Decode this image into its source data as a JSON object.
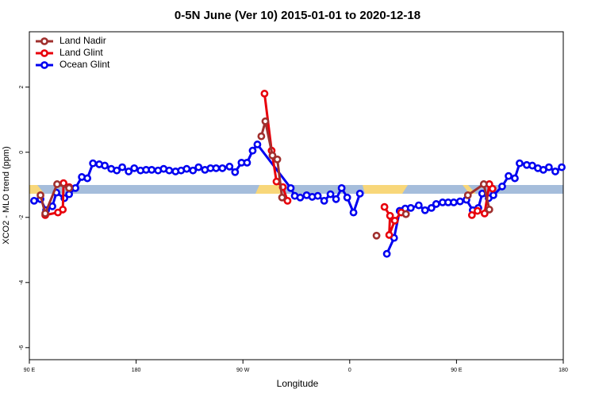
{
  "chart_data": {
    "type": "line",
    "title": "0-5N June (Ver 10)   2015-01-01 to 2020-12-18",
    "x_label": "Longitude",
    "y_label": "XCO2 - MLO trend (ppm)",
    "xlim": [
      90,
      540
    ],
    "ylim": [
      -6.37,
      3.7
    ],
    "xticks": [
      {
        "value": 90,
        "label": "90 E"
      },
      180,
      {
        "value": 270,
        "label": "90 W"
      },
      {
        "value": 360,
        "label": "0"
      },
      {
        "value": 450,
        "label": "90 E"
      },
      {
        "value": 540,
        "label": "180"
      }
    ],
    "yticks": [
      -6,
      -4,
      -2,
      0,
      2
    ],
    "legend": "top-left",
    "series": [
      {
        "name": "Land Nadir",
        "color": "#a0302e",
        "x": [
          99.4,
          103.4,
          113.4,
          123.5,
          null,
          285.5,
          288.9,
          294.9,
          299.0,
          303.0,
          null,
          382.6,
          null,
          407.4,
          null,
          459.6,
          473.0,
          477.7
        ],
        "values": [
          -1.32,
          -1.88,
          -0.98,
          -1.1,
          null,
          0.49,
          0.95,
          -0.1,
          -0.22,
          -1.39,
          null,
          -2.56,
          null,
          -1.9,
          null,
          -1.32,
          -0.98,
          -1.76
        ]
      },
      {
        "name": "Land Glint",
        "color": "#e8000b",
        "x": [
          103.4,
          114.1,
          118.2,
          118.8,
          123.5,
          null,
          288.2,
          294.2,
          298.3,
          303.6,
          307.6,
          null,
          389.3,
          394.0,
          393.3,
          398.0,
          403.4,
          407.4,
          null,
          463.0,
          467.7,
          473.7,
          477.7,
          480.4
        ],
        "values": [
          -1.93,
          -1.85,
          -1.76,
          -0.95,
          -1.07,
          null,
          1.8,
          0.05,
          -0.9,
          -1.07,
          -1.49,
          null,
          -1.68,
          -1.95,
          -2.54,
          -2.1,
          -1.85,
          -1.9,
          null,
          -1.93,
          -1.8,
          -1.88,
          -0.98,
          -1.12
        ]
      },
      {
        "name": "Ocean Glint",
        "color": "#0000f0",
        "x": [
          94.0,
          99.4,
          104.1,
          109.4,
          112.8,
          119.5,
          123.5,
          128.8,
          134.2,
          138.9,
          143.6,
          148.9,
          153.6,
          159.0,
          163.7,
          168.3,
          173.7,
          178.4,
          183.7,
          188.4,
          193.1,
          198.5,
          203.2,
          207.9,
          213.2,
          217.9,
          222.6,
          227.9,
          232.6,
          238.0,
          242.7,
          247.4,
          252.7,
          258.7,
          263.4,
          268.8,
          273.5,
          278.2,
          282.2,
          310.3,
          313.7,
          318.3,
          323.7,
          328.4,
          333.1,
          338.5,
          343.8,
          348.5,
          353.2,
          357.9,
          363.2,
          368.6,
          null,
          391.3,
          397.4,
          402.1,
          406.8,
          411.5,
          418.2,
          423.5,
          428.9,
          432.9,
          438.3,
          443.0,
          447.7,
          453.0,
          458.4,
          463.7,
          468.4,
          471.7,
          477.1,
          481.1,
          488.5,
          493.9,
          499.2,
          503.2,
          509.2,
          513.9,
          518.6,
          523.2,
          527.9,
          533.3,
          538.7
        ],
        "values": [
          -1.49,
          -1.44,
          -1.78,
          -1.66,
          -1.24,
          -1.41,
          -1.29,
          -1.1,
          -0.76,
          -0.8,
          -0.34,
          -0.37,
          -0.41,
          -0.51,
          -0.56,
          -0.46,
          -0.59,
          -0.49,
          -0.56,
          -0.54,
          -0.54,
          -0.56,
          -0.51,
          -0.56,
          -0.59,
          -0.56,
          -0.51,
          -0.56,
          -0.46,
          -0.54,
          -0.49,
          -0.49,
          -0.49,
          -0.44,
          -0.61,
          -0.32,
          -0.32,
          0.05,
          0.24,
          -1.1,
          -1.34,
          -1.39,
          -1.32,
          -1.37,
          -1.34,
          -1.49,
          -1.29,
          -1.44,
          -1.1,
          -1.39,
          -1.85,
          -1.27,
          null,
          -3.12,
          -2.63,
          -1.8,
          -1.73,
          -1.71,
          -1.63,
          -1.78,
          -1.71,
          -1.59,
          -1.54,
          -1.54,
          -1.54,
          -1.51,
          -1.46,
          -1.78,
          -1.71,
          -1.27,
          -1.41,
          -1.32,
          -1.05,
          -0.73,
          -0.8,
          -0.34,
          -0.39,
          -0.41,
          -0.49,
          -0.54,
          -0.46,
          -0.59,
          -0.46
        ]
      }
    ]
  }
}
